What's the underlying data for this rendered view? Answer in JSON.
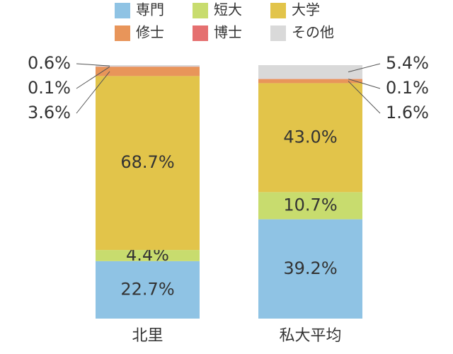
{
  "chart_data": {
    "type": "stacked_bar",
    "categories": [
      "北里",
      "私大平均"
    ],
    "series": [
      {
        "name": "専門",
        "color": "#8fc3e4",
        "values": [
          22.7,
          39.2
        ],
        "value_labels": [
          "22.7%",
          "39.2%"
        ]
      },
      {
        "name": "短大",
        "color": "#c8dc6e",
        "values": [
          4.4,
          10.7
        ],
        "value_labels": [
          "4.4%",
          "10.7%"
        ]
      },
      {
        "name": "大学",
        "color": "#e2c44a",
        "values": [
          68.7,
          43.0
        ],
        "value_labels": [
          "68.7%",
          "43.0%"
        ]
      },
      {
        "name": "修士",
        "color": "#e8955a",
        "values": [
          3.6,
          1.6
        ],
        "value_labels": [
          "3.6%",
          "1.6%"
        ]
      },
      {
        "name": "博士",
        "color": "#e57070",
        "values": [
          0.1,
          0.1
        ],
        "value_labels": [
          "0.1%",
          "0.1%"
        ]
      },
      {
        "name": "その他",
        "color": "#d9d9d9",
        "values": [
          0.6,
          5.4
        ],
        "value_labels": [
          "0.6%",
          "5.4%"
        ]
      }
    ]
  }
}
